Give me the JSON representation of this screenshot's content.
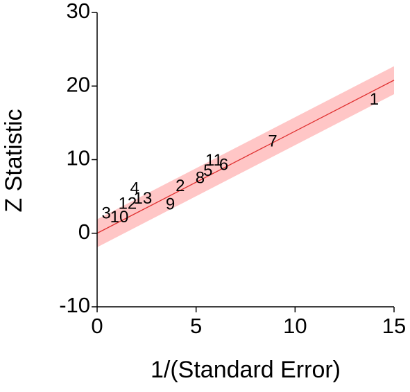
{
  "chart_data": {
    "type": "scatter",
    "xlabel": "1/(Standard Error)",
    "ylabel": "Z Statistic",
    "xlim": [
      0,
      15
    ],
    "xticks": [
      0,
      5,
      10,
      15
    ],
    "ylim": [
      -10,
      30
    ],
    "yticks": [
      -10,
      0,
      10,
      20,
      30
    ],
    "point_labels": [
      "1",
      "7",
      "11",
      "6",
      "5",
      "8",
      "2",
      "4",
      "9",
      "3",
      "12",
      "10",
      "13"
    ],
    "x": [
      14.0,
      8.87,
      5.9,
      6.4,
      5.6,
      5.2,
      4.2,
      1.9,
      3.7,
      0.46,
      1.54,
      1.12,
      2.31
    ],
    "values": [
      18.1,
      12.4,
      9.8,
      9.2,
      8.4,
      7.4,
      6.3,
      6.0,
      3.8,
      2.6,
      3.9,
      2.1,
      4.6
    ],
    "point_color": "#000000",
    "fit": {
      "x": [
        0,
        15
      ],
      "y": [
        0,
        20.8
      ],
      "upper": [
        1.9,
        22.7
      ],
      "lower": [
        -1.9,
        18.9
      ],
      "color": "#e03030",
      "band_color": "#ffc6c6"
    }
  }
}
